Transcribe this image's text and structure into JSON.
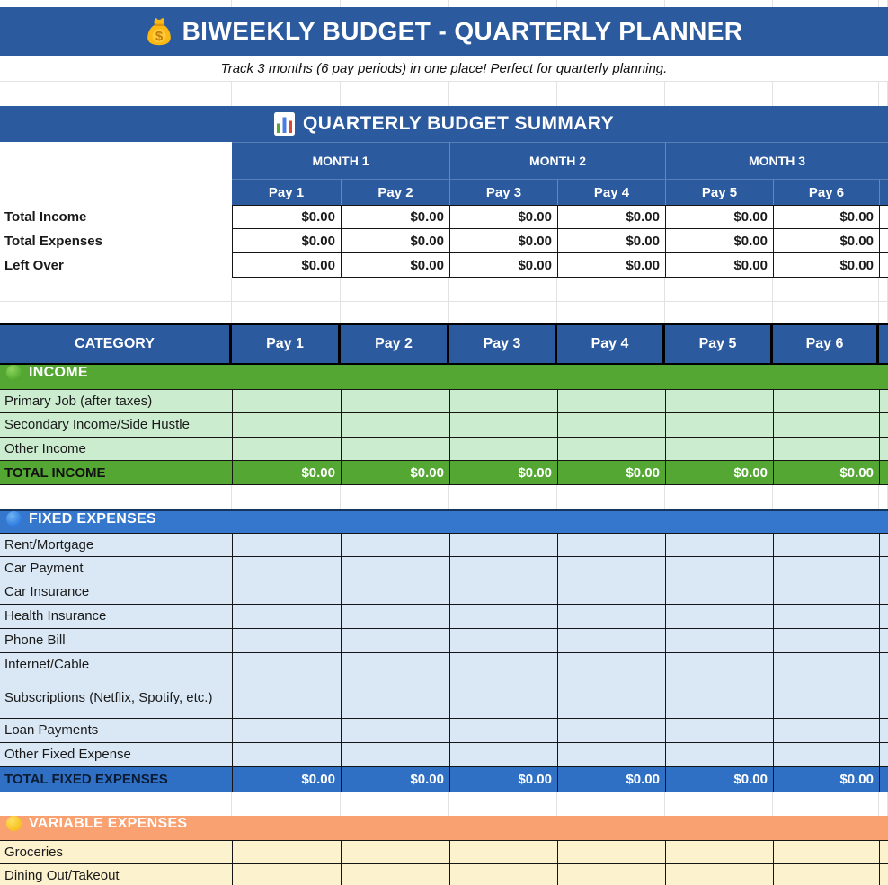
{
  "title_bar": {
    "icon": "money-bag",
    "text": "BIWEEKLY BUDGET - QUARTERLY PLANNER"
  },
  "subtitle": "Track 3 months (6 pay periods) in one place! Perfect for quarterly planning.",
  "summary": {
    "title": {
      "icon": "bar-chart",
      "text": "QUARTERLY BUDGET SUMMARY"
    },
    "months": [
      "MONTH 1",
      "MONTH 2",
      "MONTH 3"
    ],
    "pay_columns": [
      "Pay 1",
      "Pay 2",
      "Pay 3",
      "Pay 4",
      "Pay 5",
      "Pay 6"
    ],
    "rows": [
      {
        "label": "Total Income",
        "values": [
          "$0.00",
          "$0.00",
          "$0.00",
          "$0.00",
          "$0.00",
          "$0.00"
        ]
      },
      {
        "label": "Total Expenses",
        "values": [
          "$0.00",
          "$0.00",
          "$0.00",
          "$0.00",
          "$0.00",
          "$0.00"
        ]
      },
      {
        "label": "Left Over",
        "values": [
          "$0.00",
          "$0.00",
          "$0.00",
          "$0.00",
          "$0.00",
          "$0.00"
        ]
      }
    ]
  },
  "category_table": {
    "category_header": "CATEGORY",
    "pay_columns": [
      "Pay 1",
      "Pay 2",
      "Pay 3",
      "Pay 4",
      "Pay 5",
      "Pay 6"
    ],
    "sections": [
      {
        "id": "income",
        "title": "INCOME",
        "icon": "green-circle",
        "colors": {
          "header_bg": "#55A733",
          "header_text": "#FFFFFF",
          "row_bg": "#CBECCF",
          "total_bg": "#55A733",
          "total_label": "#111111",
          "total_text": "#FFFFFF",
          "icon_inner": "#8FD45F",
          "icon_outer": "#3C9D1D"
        },
        "rows": [
          "Primary Job (after taxes)",
          "Secondary Income/Side Hustle",
          "Other Income"
        ],
        "total": {
          "label": "TOTAL INCOME",
          "values": [
            "$0.00",
            "$0.00",
            "$0.00",
            "$0.00",
            "$0.00",
            "$0.00"
          ]
        }
      },
      {
        "id": "fixed-expenses",
        "title": "FIXED EXPENSES",
        "icon": "blue-circle",
        "colors": {
          "header_bg": "#3577CD",
          "header_text": "#FFFFFF",
          "row_bg": "#DAE8F6",
          "total_bg": "#2F70C5",
          "total_label": "#0B1B33",
          "total_text": "#FFFFFF",
          "icon_inner": "#6FB3F2",
          "icon_outer": "#1565D8"
        },
        "rows": [
          "Rent/Mortgage",
          "Car Payment",
          "Car Insurance",
          "Health Insurance",
          "Phone Bill",
          "Internet/Cable",
          "Subscriptions (Netflix, Spotify, etc.)",
          "Loan Payments",
          "Other Fixed Expense"
        ],
        "total": {
          "label": "TOTAL FIXED EXPENSES",
          "values": [
            "$0.00",
            "$0.00",
            "$0.00",
            "$0.00",
            "$0.00",
            "$0.00"
          ]
        }
      },
      {
        "id": "variable-expenses",
        "title": "VARIABLE EXPENSES",
        "icon": "yellow-circle",
        "colors": {
          "header_bg": "#F9A171",
          "header_text": "#FFFFFF",
          "row_bg": "#FCF2CD",
          "icon_inner": "#FFE066",
          "icon_outer": "#F4B400"
        },
        "rows": [
          "Groceries",
          "Dining Out/Takeout"
        ],
        "total": null
      }
    ]
  },
  "colors": {
    "banner_bg": "#2B5A9E",
    "banner_text": "#FFFFFF",
    "table_border": "#151515",
    "gridline": "#E2E2E2",
    "cell_bg": "#FFFFFF",
    "text": "#1A1A1A"
  }
}
